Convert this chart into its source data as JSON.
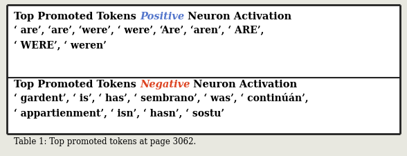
{
  "bg_color": "#e8e8e0",
  "white": "#ffffff",
  "border_color": "#222222",
  "positive_color": "#5577cc",
  "negative_color": "#dd4422",
  "pos_title_pre": "Top Promoted Tokens ",
  "pos_title_mid": "Positive",
  "pos_title_post": " Neuron Activation",
  "pos_line1": "‘ are’, ‘are’, ‘were’, ‘ were’, ‘Are’, ‘aren’, ‘ ARE’,",
  "pos_line2": "‘ WERE’, ‘ weren’",
  "neg_title_pre": "Top Promoted Tokens ",
  "neg_title_mid": "Negative",
  "neg_title_post": " Neuron Activation",
  "neg_line1": "‘ gardent’, ‘ is’, ‘ has’, ‘ sembrano’, ‘ was’, ‘ continúán’,",
  "neg_line2": "‘ appartienment’, ‘ isn’, ‘ hasn’, ‘ sostu’",
  "title_fs": 10.5,
  "body_fs": 10.0,
  "footer_fs": 8.5,
  "footer": "Table 1: Top promoted tokens at page 3062."
}
